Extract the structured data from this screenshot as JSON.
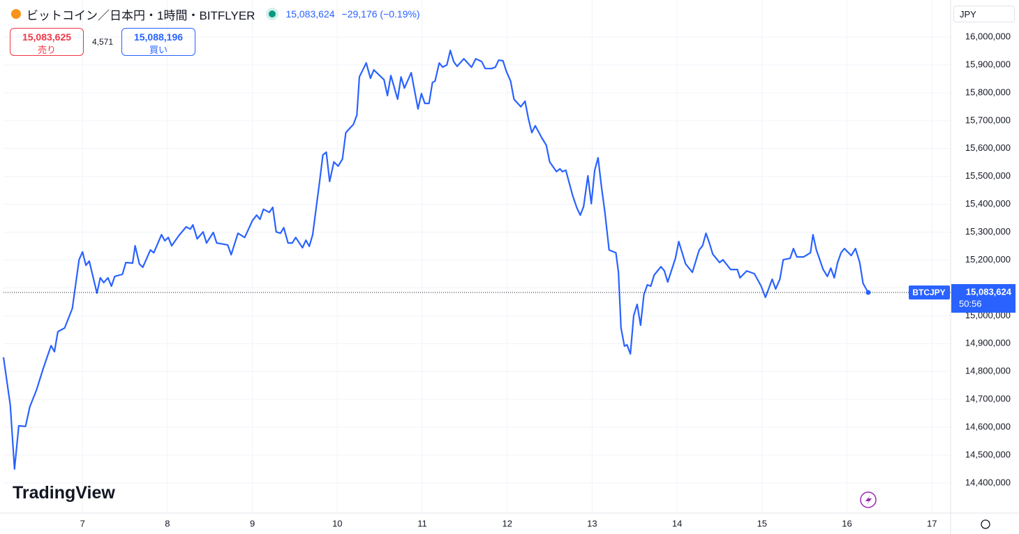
{
  "header": {
    "title": "ビットコイン／日本円・1時間・BITFLYER",
    "price": "15,083,624",
    "change": "−29,176 (−0.19%)",
    "sell_price": "15,083,625",
    "sell_label": "売り",
    "spread": "4,571",
    "buy_price": "15,088,196",
    "buy_label": "買い",
    "currency": "JPY",
    "logo": "TradingView"
  },
  "chart_data": {
    "type": "line",
    "x": [
      6.07,
      6.15,
      6.2,
      6.25,
      6.33,
      6.38,
      6.46,
      6.54,
      6.63,
      6.67,
      6.71,
      6.79,
      6.88,
      6.96,
      7.0,
      7.04,
      7.08,
      7.17,
      7.21,
      7.25,
      7.3,
      7.34,
      7.38,
      7.47,
      7.51,
      7.59,
      7.62,
      7.67,
      7.71,
      7.8,
      7.84,
      7.93,
      7.97,
      8.01,
      8.05,
      8.13,
      8.22,
      8.27,
      8.3,
      8.35,
      8.42,
      8.46,
      8.54,
      8.58,
      8.71,
      8.75,
      8.83,
      8.91,
      9.0,
      9.05,
      9.09,
      9.13,
      9.2,
      9.24,
      9.28,
      9.33,
      9.37,
      9.42,
      9.47,
      9.51,
      9.59,
      9.63,
      9.67,
      9.71,
      9.79,
      9.83,
      9.87,
      9.91,
      9.96,
      10.01,
      10.06,
      10.1,
      10.19,
      10.23,
      10.26,
      10.34,
      10.39,
      10.43,
      10.55,
      10.59,
      10.63,
      10.71,
      10.75,
      10.79,
      10.87,
      10.95,
      10.99,
      11.03,
      11.08,
      11.12,
      11.15,
      11.2,
      11.24,
      11.29,
      11.33,
      11.37,
      11.41,
      11.49,
      11.58,
      11.63,
      11.7,
      11.74,
      11.82,
      11.86,
      11.9,
      11.95,
      11.99,
      12.04,
      12.08,
      12.16,
      12.21,
      12.25,
      12.29,
      12.33,
      12.41,
      12.46,
      12.5,
      12.58,
      12.62,
      12.65,
      12.69,
      12.77,
      12.82,
      12.86,
      12.9,
      12.95,
      12.99,
      13.03,
      13.07,
      13.11,
      13.15,
      13.2,
      13.28,
      13.31,
      13.34,
      13.38,
      13.41,
      13.45,
      13.49,
      13.53,
      13.57,
      13.61,
      13.65,
      13.69,
      13.73,
      13.81,
      13.85,
      13.89,
      13.98,
      14.02,
      14.06,
      14.1,
      14.18,
      14.22,
      14.26,
      14.3,
      14.34,
      14.38,
      14.42,
      14.5,
      14.54,
      14.63,
      14.71,
      14.74,
      14.82,
      14.91,
      14.99,
      15.04,
      15.12,
      15.16,
      15.21,
      15.25,
      15.33,
      15.37,
      15.41,
      15.49,
      15.57,
      15.6,
      15.64,
      15.72,
      15.77,
      15.81,
      15.85,
      15.89,
      15.93,
      15.97,
      16.05,
      16.1,
      16.15,
      16.19,
      16.25
    ],
    "series": [
      {
        "name": "BTCJPY",
        "color": "#2962ff",
        "values": [
          14851000,
          14680000,
          14450000,
          14605000,
          14603000,
          14673000,
          14735000,
          14813000,
          14893000,
          14871000,
          14943000,
          14956000,
          15026000,
          15201000,
          15229000,
          15181000,
          15196000,
          15081000,
          15136000,
          15119000,
          15136000,
          15106000,
          15141000,
          15149000,
          15191000,
          15189000,
          15251000,
          15186000,
          15174000,
          15236000,
          15226000,
          15291000,
          15269000,
          15281000,
          15251000,
          15286000,
          15319000,
          15311000,
          15326000,
          15276000,
          15301000,
          15261000,
          15299000,
          15261000,
          15254000,
          15219000,
          15296000,
          15281000,
          15341000,
          15361000,
          15346000,
          15382000,
          15371000,
          15389000,
          15301000,
          15296000,
          15316000,
          15261000,
          15261000,
          15281000,
          15244000,
          15271000,
          15249000,
          15291000,
          15477000,
          15577000,
          15587000,
          15482000,
          15552000,
          15537000,
          15562000,
          15657000,
          15687000,
          15720000,
          15857000,
          15907000,
          15852000,
          15882000,
          15847000,
          15790000,
          15862000,
          15777000,
          15857000,
          15817000,
          15872000,
          15742000,
          15797000,
          15762000,
          15762000,
          15837000,
          15842000,
          15907000,
          15892000,
          15900000,
          15952000,
          15912000,
          15895000,
          15922000,
          15892000,
          15922000,
          15912000,
          15887000,
          15887000,
          15892000,
          15917000,
          15915000,
          15877000,
          15842000,
          15777000,
          15750000,
          15770000,
          15707000,
          15657000,
          15682000,
          15637000,
          15612000,
          15552000,
          15517000,
          15527000,
          15517000,
          15522000,
          15432000,
          15387000,
          15361000,
          15392000,
          15502000,
          15402000,
          15522000,
          15567000,
          15462000,
          15371000,
          15236000,
          15226000,
          15156000,
          14956000,
          14891000,
          14896000,
          14863000,
          15001000,
          15041000,
          14966000,
          15076000,
          15111000,
          15106000,
          15146000,
          15176000,
          15161000,
          15121000,
          15206000,
          15266000,
          15226000,
          15186000,
          15156000,
          15196000,
          15236000,
          15251000,
          15296000,
          15261000,
          15221000,
          15191000,
          15201000,
          15166000,
          15166000,
          15136000,
          15161000,
          15151000,
          15106000,
          15066000,
          15131000,
          15096000,
          15131000,
          15201000,
          15206000,
          15241000,
          15211000,
          15211000,
          15226000,
          15291000,
          15236000,
          15166000,
          15141000,
          15171000,
          15136000,
          15191000,
          15226000,
          15241000,
          15216000,
          15241000,
          15191000,
          15116000,
          15083624
        ]
      }
    ],
    "price_label": {
      "name": "BTCJPY",
      "value_label": "15,083,624",
      "countdown": "50:56"
    },
    "xlim": [
      6.07,
      17.22
    ],
    "xticks": [
      7,
      8,
      9,
      10,
      11,
      12,
      13,
      14,
      15,
      16,
      17
    ],
    "ylim": [
      14292000,
      16133000
    ],
    "yticks": [
      {
        "value": 14400000,
        "label": "14,400,000"
      },
      {
        "value": 14500000,
        "label": "14,500,000"
      },
      {
        "value": 14600000,
        "label": "14,600,000"
      },
      {
        "value": 14700000,
        "label": "14,700,000"
      },
      {
        "value": 14800000,
        "label": "14,800,000"
      },
      {
        "value": 14900000,
        "label": "14,900,000"
      },
      {
        "value": 15000000,
        "label": "15,000,000"
      },
      {
        "value": 15100000,
        "label": "15,100,000"
      },
      {
        "value": 15200000,
        "label": "15,200,000"
      },
      {
        "value": 15300000,
        "label": "15,300,000"
      },
      {
        "value": 15400000,
        "label": "15,400,000"
      },
      {
        "value": 15500000,
        "label": "15,500,000"
      },
      {
        "value": 15600000,
        "label": "15,600,000"
      },
      {
        "value": 15700000,
        "label": "15,700,000"
      },
      {
        "value": 15800000,
        "label": "15,800,000"
      },
      {
        "value": 15900000,
        "label": "15,900,000"
      },
      {
        "value": 16000000,
        "label": "16,000,000"
      }
    ],
    "grid": true
  }
}
